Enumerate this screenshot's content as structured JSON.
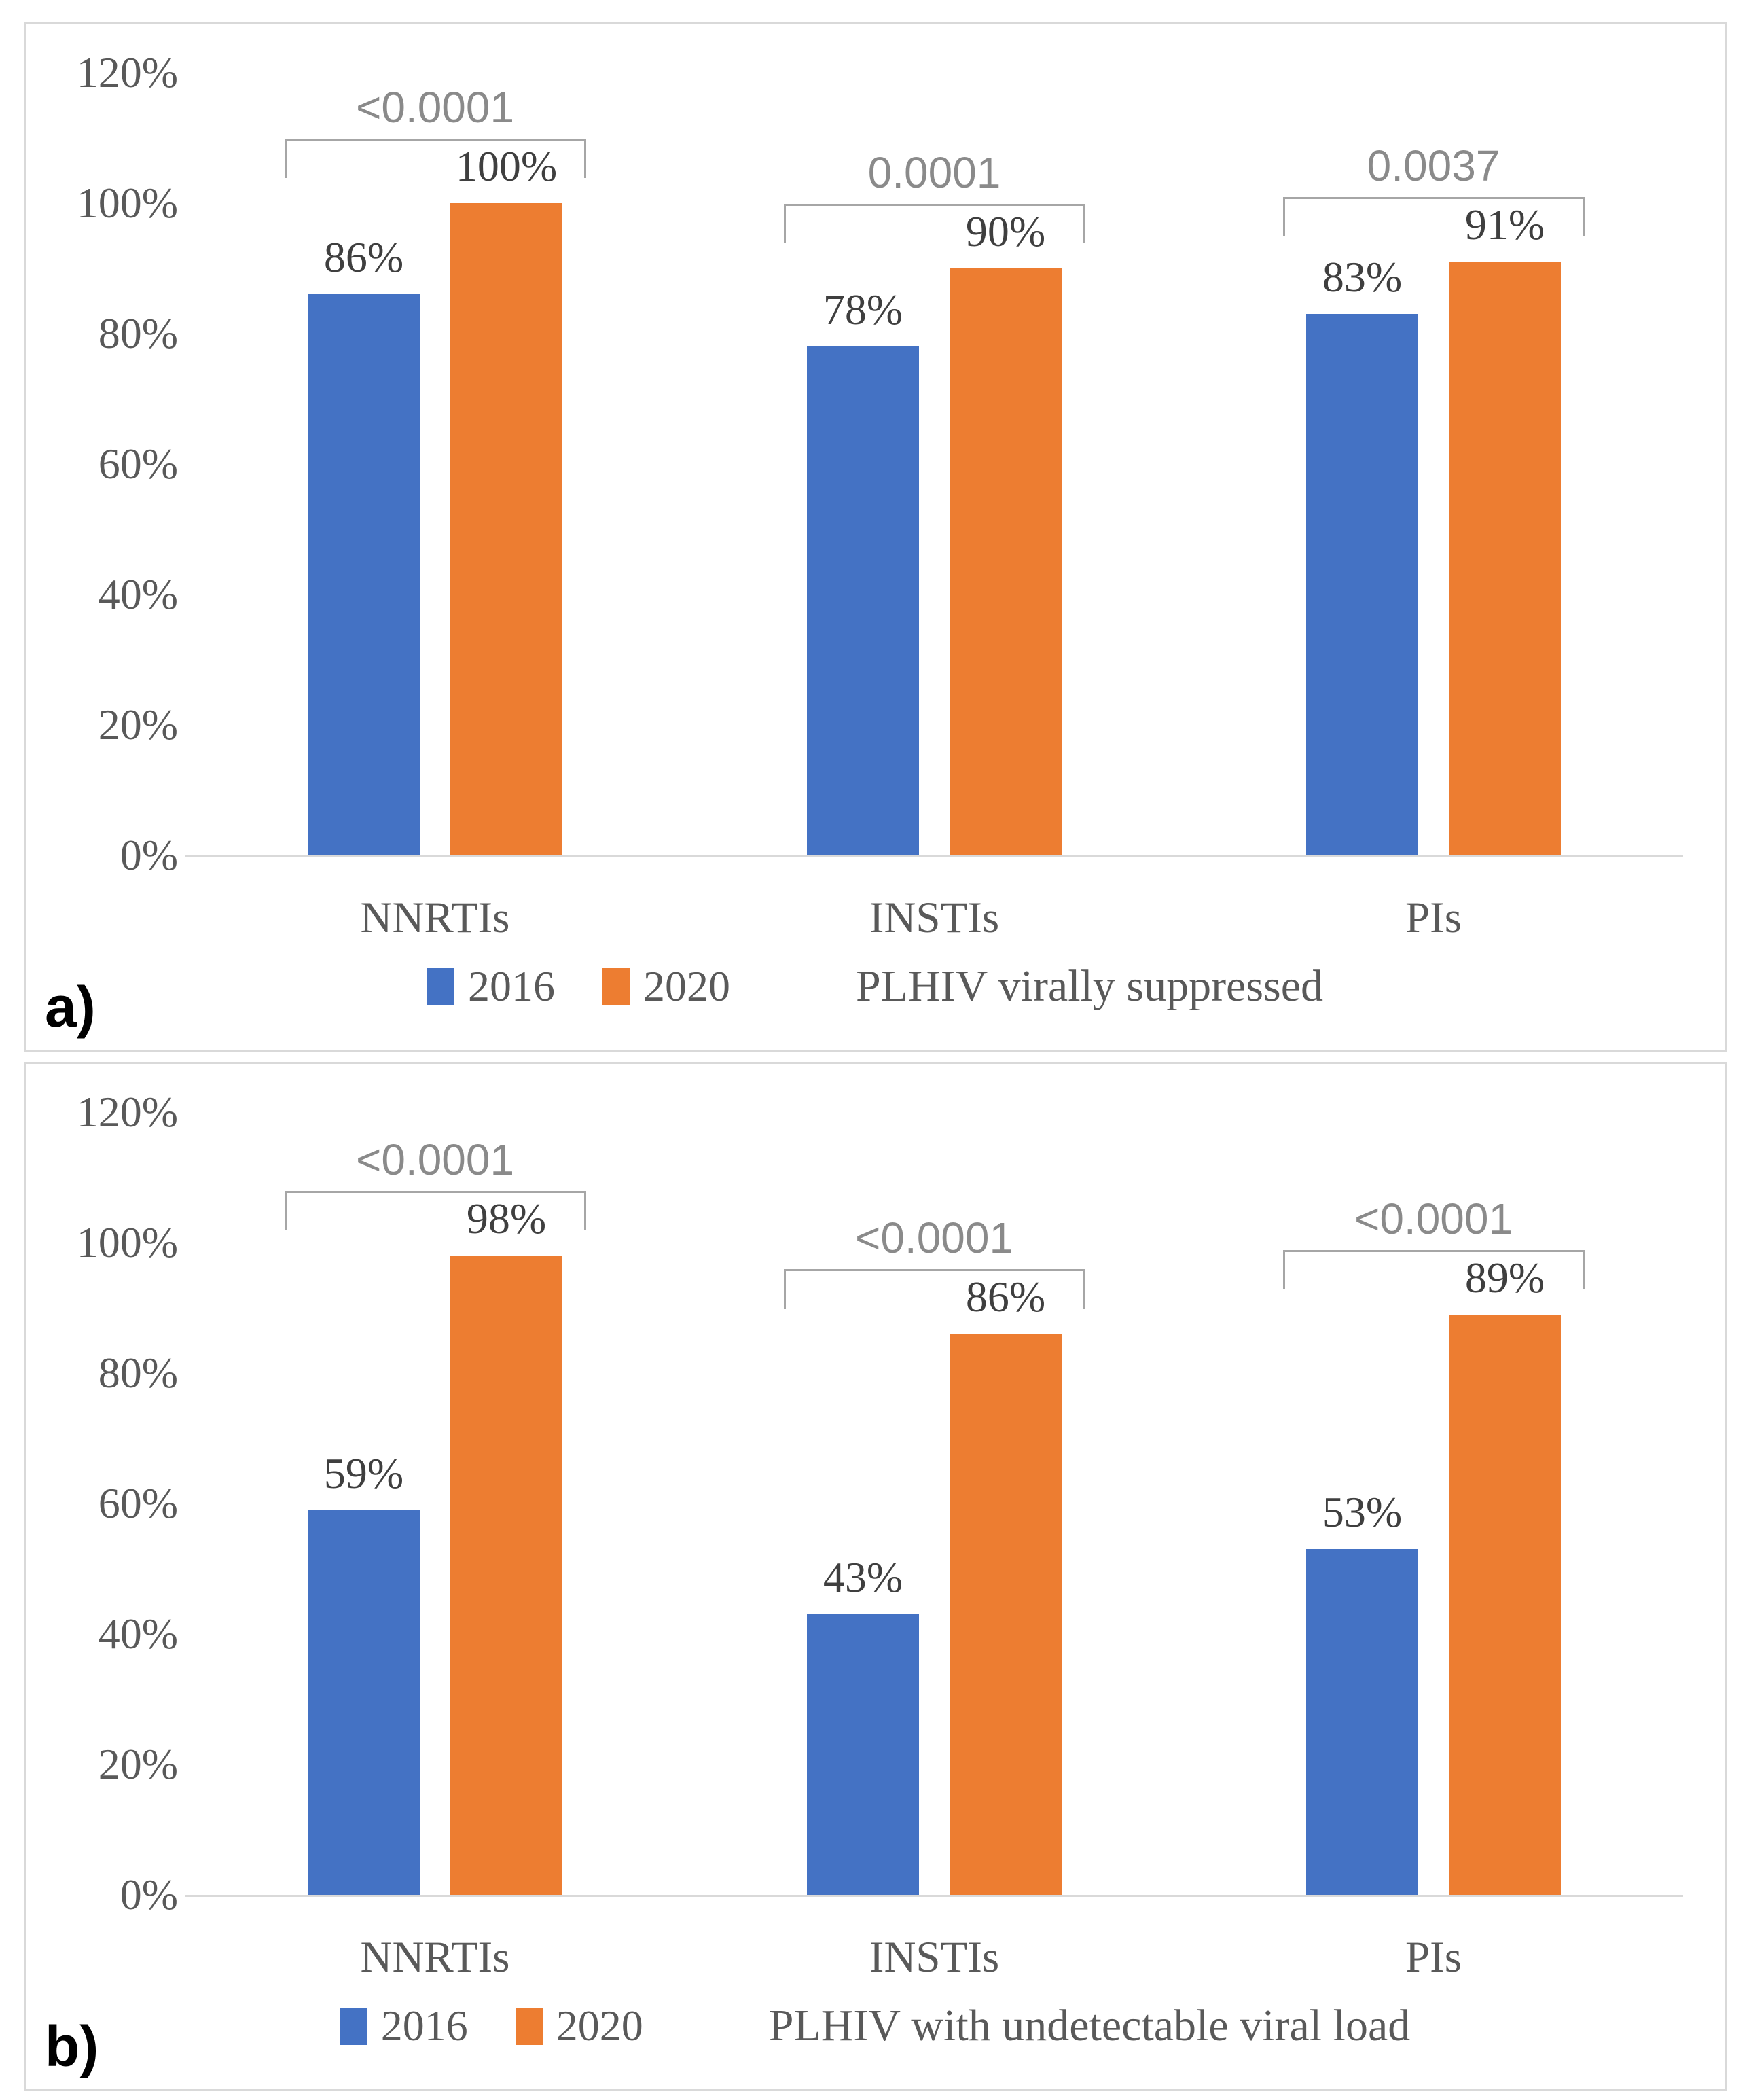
{
  "chart_data": [
    {
      "type": "bar",
      "panel_letter": "a)",
      "title": "PLHIV virally suppressed",
      "categories": [
        "NNRTIs",
        "INSTIs",
        "PIs"
      ],
      "series": [
        {
          "name": "2016",
          "color": "#4472C4",
          "values": [
            86,
            78,
            83
          ],
          "labels": [
            "86%",
            "78%",
            "83%"
          ]
        },
        {
          "name": "2020",
          "color": "#ED7D31",
          "values": [
            100,
            90,
            91
          ],
          "labels": [
            "100%",
            "90%",
            "91%"
          ]
        }
      ],
      "p_values": [
        "<0.0001",
        "0.0001",
        "0.0037"
      ],
      "y_ticks": [
        "120%",
        "100%",
        "80%",
        "60%",
        "40%",
        "20%",
        "0%"
      ],
      "ylim": [
        0,
        120
      ],
      "xlabel": "",
      "ylabel": "",
      "grid": false,
      "legend_position": "bottom"
    },
    {
      "type": "bar",
      "panel_letter": "b)",
      "title": "PLHIV with undetectable viral load",
      "categories": [
        "NNRTIs",
        "INSTIs",
        "PIs"
      ],
      "series": [
        {
          "name": "2016",
          "color": "#4472C4",
          "values": [
            59,
            43,
            53
          ],
          "labels": [
            "59%",
            "43%",
            "53%"
          ]
        },
        {
          "name": "2020",
          "color": "#ED7D31",
          "values": [
            98,
            86,
            89
          ],
          "labels": [
            "98%",
            "86%",
            "89%"
          ]
        }
      ],
      "p_values": [
        "<0.0001",
        "<0.0001",
        "<0.0001"
      ],
      "y_ticks": [
        "120%",
        "100%",
        "80%",
        "60%",
        "40%",
        "20%",
        "0%"
      ],
      "ylim": [
        0,
        120
      ],
      "xlabel": "",
      "ylabel": "",
      "grid": false,
      "legend_position": "bottom"
    }
  ],
  "style": {
    "series_colors": {
      "2016": "#4472C4",
      "2020": "#ED7D31"
    },
    "axis_line_color": "#D9D9D9",
    "tick_text_color": "#595959",
    "data_label_color": "#3f3f3f",
    "p_value_color": "#8a8a8a",
    "bracket_color": "#A6A6A6",
    "panel_border_color": "#D9D9D9",
    "background": "#ffffff"
  }
}
